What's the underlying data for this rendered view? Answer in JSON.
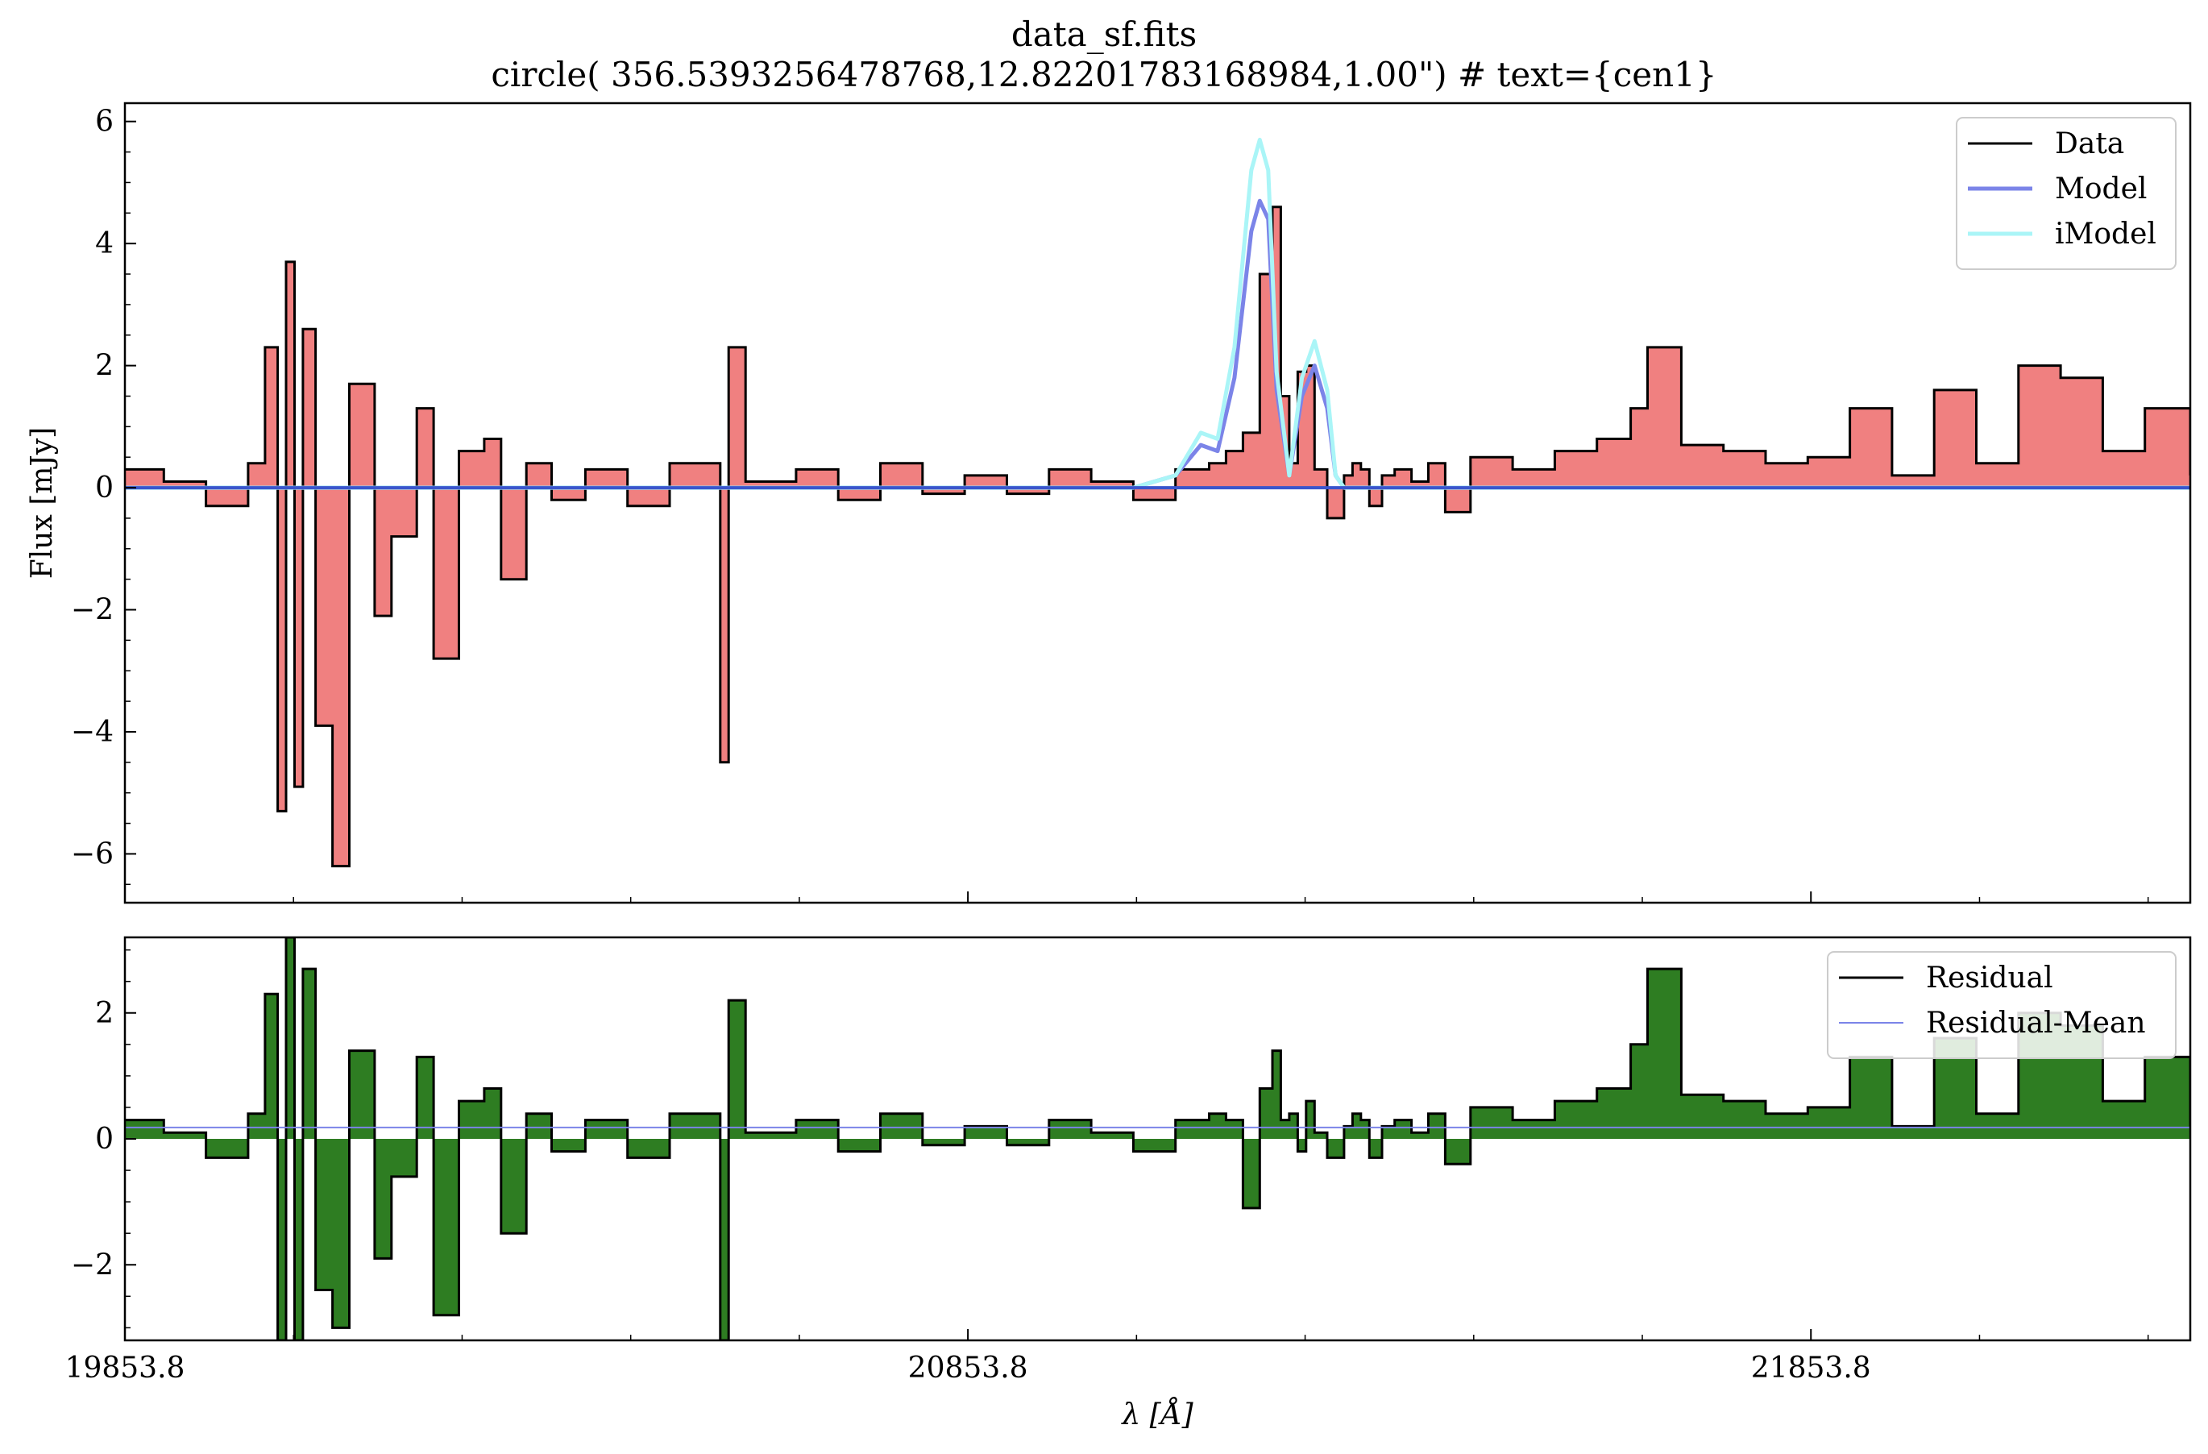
{
  "title": "data_sf.fits",
  "subtitle": "circle( 356.5393256478768,12.82201783168984,1.00\") # text={cen1}",
  "chart_data": [
    {
      "type": "line",
      "panel": "spectrum",
      "ylabel": "Flux [mJy]",
      "xlabel": "",
      "xlim": [
        19853.8,
        22303.8
      ],
      "ylim": [
        -6.8,
        6.3
      ],
      "yticks": [
        6,
        4,
        2,
        0,
        -2,
        -4,
        -6
      ],
      "ytick_labels": [
        "6",
        "4",
        "2",
        "0",
        "−2",
        "−4",
        "−6"
      ],
      "xticks": [
        19853.8,
        20853.8,
        21853.8
      ],
      "legend": {
        "placement": "top-right"
      },
      "fill_color": "#f08080",
      "series": [
        {
          "name": "Data",
          "color": "#000000",
          "style": "steps",
          "x": [
            19853.8,
            19900,
            19950,
            20000,
            20020,
            20035,
            20045,
            20055,
            20065,
            20080,
            20100,
            20120,
            20150,
            20170,
            20200,
            20220,
            20250,
            20280,
            20300,
            20330,
            20360,
            20400,
            20450,
            20500,
            20560,
            20570,
            20590,
            20650,
            20700,
            20750,
            20800,
            20850,
            20900,
            20950,
            21000,
            21050,
            21100,
            21140,
            21160,
            21180,
            21200,
            21215,
            21225,
            21235,
            21245,
            21255,
            21265,
            21280,
            21300,
            21310,
            21320,
            21330,
            21345,
            21360,
            21380,
            21400,
            21420,
            21450,
            21500,
            21550,
            21600,
            21640,
            21660,
            21700,
            21750,
            21800,
            21850,
            21900,
            21950,
            22000,
            22050,
            22100,
            22150,
            22200,
            22250,
            22303.8
          ],
          "y": [
            0.3,
            0.1,
            -0.3,
            0.4,
            2.3,
            -5.3,
            3.7,
            -4.9,
            2.6,
            -3.9,
            -6.2,
            1.7,
            -2.1,
            -0.8,
            1.3,
            -2.8,
            0.6,
            0.8,
            -1.5,
            0.4,
            -0.2,
            0.3,
            -0.3,
            0.4,
            -4.5,
            2.3,
            0.1,
            0.3,
            -0.2,
            0.4,
            -0.1,
            0.2,
            -0.1,
            0.3,
            0.1,
            -0.2,
            0.3,
            0.4,
            0.6,
            0.9,
            3.5,
            4.6,
            1.5,
            0.4,
            1.9,
            2.0,
            0.3,
            -0.5,
            0.2,
            0.4,
            0.3,
            -0.3,
            0.2,
            0.3,
            0.1,
            0.4,
            -0.4,
            0.5,
            0.3,
            0.6,
            0.8,
            1.3,
            2.3,
            0.7,
            0.6,
            0.4,
            0.5,
            1.3,
            0.2,
            1.6,
            0.4,
            2.0,
            1.8,
            0.6,
            1.3,
            0.2
          ]
        },
        {
          "name": "Model",
          "color": "#7b84e8",
          "x": [
            19853.8,
            21050,
            21100,
            21130,
            21150,
            21170,
            21190,
            21200,
            21210,
            21220,
            21235,
            21250,
            21265,
            21280,
            21290,
            21300,
            22303.8
          ],
          "y": [
            0,
            0,
            0.2,
            0.7,
            0.6,
            1.8,
            4.2,
            4.7,
            4.4,
            1.6,
            0.2,
            1.5,
            2.0,
            1.3,
            0.2,
            0,
            0
          ]
        },
        {
          "name": "iModel",
          "color": "#aaf5f7",
          "x": [
            19853.8,
            21050,
            21100,
            21130,
            21150,
            21170,
            21190,
            21200,
            21210,
            21220,
            21235,
            21250,
            21265,
            21280,
            21290,
            21300,
            22303.8
          ],
          "y": [
            0,
            0,
            0.2,
            0.9,
            0.8,
            2.3,
            5.2,
            5.7,
            5.2,
            1.9,
            0.2,
            1.8,
            2.4,
            1.6,
            0.2,
            0,
            0
          ]
        },
        {
          "color": "#3a55cc",
          "x": [
            19853.8,
            22303.8
          ],
          "y": [
            0,
            0
          ]
        }
      ]
    },
    {
      "type": "line",
      "panel": "residual",
      "xlabel": "λ [Å]",
      "ylabel": "",
      "xlim": [
        19853.8,
        22303.8
      ],
      "ylim": [
        -3.2,
        3.2
      ],
      "yticks": [
        2,
        0,
        -2
      ],
      "ytick_labels": [
        "2",
        "0",
        "−2"
      ],
      "xticks": [
        19853.8,
        20853.8,
        21853.8
      ],
      "xtick_labels": [
        "19853.8",
        "20853.8",
        "21853.8"
      ],
      "legend": {
        "placement": "top-right"
      },
      "fill_color": "#2e7d22",
      "series": [
        {
          "name": "Residual",
          "color": "#000000",
          "style": "steps",
          "x": [
            19853.8,
            19900,
            19950,
            20000,
            20020,
            20035,
            20045,
            20055,
            20065,
            20080,
            20100,
            20120,
            20150,
            20170,
            20200,
            20220,
            20250,
            20280,
            20300,
            20330,
            20360,
            20400,
            20450,
            20500,
            20560,
            20570,
            20590,
            20650,
            20700,
            20750,
            20800,
            20850,
            20900,
            20950,
            21000,
            21050,
            21100,
            21140,
            21160,
            21180,
            21200,
            21215,
            21225,
            21235,
            21245,
            21255,
            21265,
            21280,
            21300,
            21310,
            21320,
            21330,
            21345,
            21360,
            21380,
            21400,
            21420,
            21450,
            21500,
            21550,
            21600,
            21640,
            21660,
            21700,
            21750,
            21800,
            21850,
            21900,
            21950,
            22000,
            22050,
            22100,
            22150,
            22200,
            22250,
            22303.8
          ],
          "y": [
            0.3,
            0.1,
            -0.3,
            0.4,
            2.3,
            -3.2,
            3.2,
            -3.2,
            2.7,
            -2.4,
            -3.0,
            1.4,
            -1.9,
            -0.6,
            1.3,
            -2.8,
            0.6,
            0.8,
            -1.5,
            0.4,
            -0.2,
            0.3,
            -0.3,
            0.4,
            -3.2,
            2.2,
            0.1,
            0.3,
            -0.2,
            0.4,
            -0.1,
            0.2,
            -0.1,
            0.3,
            0.1,
            -0.2,
            0.3,
            0.4,
            0.3,
            -1.1,
            0.8,
            1.4,
            0.3,
            0.4,
            -0.2,
            0.6,
            0.1,
            -0.3,
            0.2,
            0.4,
            0.3,
            -0.3,
            0.2,
            0.3,
            0.1,
            0.4,
            -0.4,
            0.5,
            0.3,
            0.6,
            0.8,
            1.5,
            2.7,
            0.7,
            0.6,
            0.4,
            0.5,
            1.3,
            0.2,
            1.6,
            0.4,
            2.0,
            1.8,
            0.6,
            1.3,
            0.2
          ]
        },
        {
          "name": "Residual-Mean",
          "color": "#7b84e8",
          "x": [
            19853.8,
            22303.8
          ],
          "y": [
            0.18,
            0.18
          ]
        }
      ]
    }
  ]
}
